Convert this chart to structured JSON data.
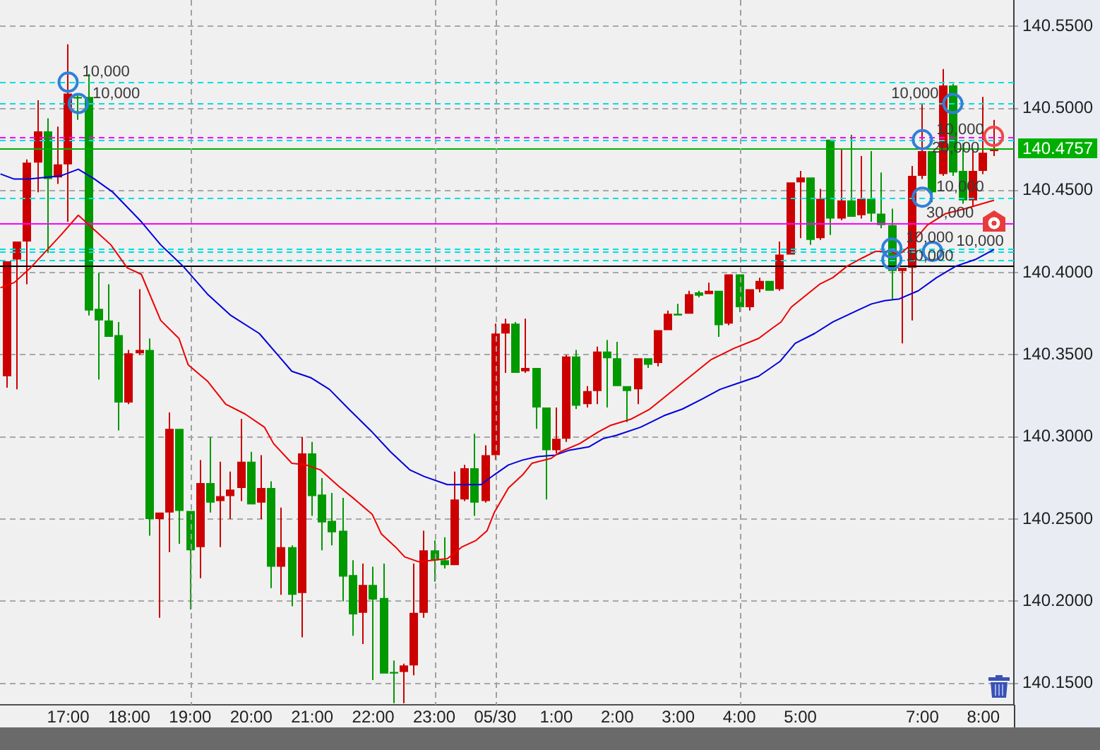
{
  "chart_data": {
    "type": "candlestick",
    "x": [
      "--05-29T16:00",
      "--05-29T16:10",
      "--05-29T16:20",
      "--05-29T16:30",
      "--05-29T16:40",
      "--05-29T16:50",
      "--05-29T17:00",
      "--05-29T17:10",
      "--05-29T17:20",
      "--05-29T17:30",
      "--05-29T17:40",
      "--05-29T17:50",
      "--05-29T18:00",
      "--05-29T18:10",
      "--05-29T18:20",
      "--05-29T18:30",
      "--05-29T18:40",
      "--05-29T18:50",
      "--05-29T19:00",
      "--05-29T19:10",
      "--05-29T19:20",
      "--05-29T19:30",
      "--05-29T19:40",
      "--05-29T19:50",
      "--05-29T20:00",
      "--05-29T20:10",
      "--05-29T20:20",
      "--05-29T20:30",
      "--05-29T20:40",
      "--05-29T20:50",
      "--05-29T21:00",
      "--05-29T21:10",
      "--05-29T21:20",
      "--05-29T21:30",
      "--05-29T21:40",
      "--05-29T21:50",
      "--05-29T22:00",
      "--05-29T22:10",
      "--05-29T22:20",
      "--05-29T22:30",
      "--05-29T22:40",
      "--05-29T22:50",
      "--05-29T23:00",
      "--05-29T23:10",
      "--05-29T23:20",
      "--05-29T23:30",
      "--05-29T23:40",
      "--05-29T23:50",
      "--05-30T00:00",
      "--05-30T00:10",
      "--05-30T00:20",
      "--05-30T00:30",
      "--05-30T00:40",
      "--05-30T00:50",
      "--05-30T01:00",
      "--05-30T01:10",
      "--05-30T01:20",
      "--05-30T01:30",
      "--05-30T01:40",
      "--05-30T01:50",
      "--05-30T02:00",
      "--05-30T02:10",
      "--05-30T02:20",
      "--05-30T02:30",
      "--05-30T02:40",
      "--05-30T02:50",
      "--05-30T03:00",
      "--05-30T03:10",
      "--05-30T03:20",
      "--05-30T03:30",
      "--05-30T03:40",
      "--05-30T03:50",
      "--05-30T04:00",
      "--05-30T04:10",
      "--05-30T04:20",
      "--05-30T04:30",
      "--05-30T04:40",
      "--05-30T04:50",
      "--05-30T05:00",
      "--05-30T05:10",
      "--05-30T05:20",
      "--05-30T05:30",
      "--05-30T05:40",
      "--05-30T05:50",
      "--05-30T06:00",
      "--05-30T06:10",
      "--05-30T06:20",
      "--05-30T06:30",
      "--05-30T06:40",
      "--05-30T06:50",
      "--05-30T07:00",
      "--05-30T07:10",
      "--05-30T07:20",
      "--05-30T07:30",
      "--05-30T07:40",
      "--05-30T07:50",
      "--05-30T08:00",
      "--05-30T08:10"
    ],
    "ohlc": [
      [
        140.337,
        140.407,
        140.33,
        140.407
      ],
      [
        140.408,
        140.419,
        140.329,
        140.419
      ],
      [
        140.419,
        140.469,
        140.393,
        140.467
      ],
      [
        140.467,
        140.505,
        140.449,
        140.486
      ],
      [
        140.486,
        140.494,
        140.412,
        140.457
      ],
      [
        140.458,
        140.489,
        140.454,
        140.466
      ],
      [
        140.466,
        140.539,
        140.431,
        140.509
      ],
      [
        140.507,
        140.509,
        140.493,
        140.506
      ],
      [
        140.507,
        140.521,
        140.374,
        140.377
      ],
      [
        140.378,
        140.4,
        140.335,
        140.371
      ],
      [
        140.371,
        140.393,
        140.361,
        140.361
      ],
      [
        140.362,
        140.37,
        140.304,
        140.321
      ],
      [
        140.321,
        140.353,
        140.32,
        140.351
      ],
      [
        140.351,
        140.39,
        140.35,
        140.353
      ],
      [
        140.353,
        140.36,
        140.24,
        140.25
      ],
      [
        140.25,
        140.254,
        140.19,
        140.254
      ],
      [
        140.254,
        140.315,
        140.23,
        140.305
      ],
      [
        140.305,
        140.305,
        140.235,
        140.255
      ],
      [
        140.255,
        140.255,
        140.195,
        140.231
      ],
      [
        140.233,
        140.286,
        140.214,
        140.272
      ],
      [
        140.272,
        140.3,
        140.254,
        140.26
      ],
      [
        140.261,
        140.285,
        140.233,
        140.264
      ],
      [
        140.264,
        140.279,
        140.25,
        140.268
      ],
      [
        140.269,
        140.311,
        140.261,
        140.285
      ],
      [
        140.285,
        140.291,
        140.259,
        140.259
      ],
      [
        140.26,
        140.289,
        140.25,
        140.269
      ],
      [
        140.269,
        140.273,
        140.208,
        140.221
      ],
      [
        140.221,
        140.257,
        140.204,
        140.233
      ],
      [
        140.233,
        140.234,
        140.197,
        140.204
      ],
      [
        140.205,
        140.3,
        140.178,
        140.29
      ],
      [
        140.29,
        140.297,
        140.252,
        140.264
      ],
      [
        140.265,
        140.275,
        140.231,
        140.248
      ],
      [
        140.249,
        140.266,
        140.234,
        140.242
      ],
      [
        140.243,
        140.263,
        140.2,
        140.215
      ],
      [
        140.216,
        140.225,
        140.179,
        140.192
      ],
      [
        140.193,
        140.223,
        140.174,
        140.21
      ],
      [
        140.21,
        140.221,
        140.152,
        140.201
      ],
      [
        140.202,
        140.223,
        140.156,
        140.156
      ],
      [
        140.157,
        140.164,
        140.138,
        140.156
      ],
      [
        140.157,
        140.162,
        140.138,
        140.161
      ],
      [
        140.161,
        140.223,
        140.155,
        140.193
      ],
      [
        140.193,
        140.243,
        140.19,
        140.231
      ],
      [
        140.231,
        140.237,
        140.212,
        140.225
      ],
      [
        140.225,
        140.239,
        140.22,
        140.222
      ],
      [
        140.222,
        140.279,
        140.222,
        140.262
      ],
      [
        140.262,
        140.283,
        140.261,
        140.281
      ],
      [
        140.281,
        140.302,
        140.252,
        140.26
      ],
      [
        140.261,
        140.295,
        140.26,
        140.289
      ],
      [
        140.289,
        140.369,
        140.286,
        140.363
      ],
      [
        140.363,
        140.372,
        140.339,
        140.369
      ],
      [
        140.369,
        140.37,
        140.339,
        140.339
      ],
      [
        140.34,
        140.372,
        140.339,
        140.342
      ],
      [
        140.342,
        140.342,
        140.305,
        140.318
      ],
      [
        140.318,
        140.318,
        140.262,
        140.292
      ],
      [
        140.292,
        140.318,
        140.29,
        140.299
      ],
      [
        140.299,
        140.35,
        140.297,
        140.349
      ],
      [
        140.349,
        140.353,
        140.317,
        140.319
      ],
      [
        140.32,
        140.331,
        140.318,
        140.328
      ],
      [
        140.328,
        140.355,
        140.32,
        140.352
      ],
      [
        140.352,
        140.359,
        140.318,
        140.348
      ],
      [
        140.348,
        140.358,
        140.331,
        140.331
      ],
      [
        140.331,
        140.331,
        140.309,
        140.328
      ],
      [
        140.329,
        140.348,
        140.32,
        140.348
      ],
      [
        140.348,
        140.348,
        140.342,
        140.344
      ],
      [
        140.345,
        140.365,
        140.343,
        140.365
      ],
      [
        140.365,
        140.377,
        140.365,
        140.375
      ],
      [
        140.375,
        140.381,
        140.374,
        140.374
      ],
      [
        140.375,
        140.389,
        140.375,
        140.387
      ],
      [
        140.388,
        140.389,
        140.385,
        140.386
      ],
      [
        140.387,
        140.394,
        140.387,
        140.389
      ],
      [
        140.389,
        140.389,
        140.361,
        140.368
      ],
      [
        140.369,
        140.399,
        140.368,
        140.399
      ],
      [
        140.399,
        140.399,
        140.376,
        140.379
      ],
      [
        140.379,
        140.39,
        140.377,
        140.39
      ],
      [
        140.39,
        140.397,
        140.388,
        140.395
      ],
      [
        140.395,
        140.395,
        140.389,
        140.389
      ],
      [
        140.39,
        140.419,
        140.389,
        140.411
      ],
      [
        140.411,
        140.455,
        140.411,
        140.455
      ],
      [
        140.455,
        140.462,
        140.421,
        140.458
      ],
      [
        140.458,
        140.458,
        140.417,
        140.42
      ],
      [
        140.421,
        140.451,
        140.42,
        140.445
      ],
      [
        140.481,
        140.481,
        140.423,
        140.433
      ],
      [
        140.433,
        140.475,
        140.432,
        140.444
      ],
      [
        140.444,
        140.484,
        140.434,
        140.434
      ],
      [
        140.435,
        140.471,
        140.433,
        140.445
      ],
      [
        140.445,
        140.474,
        140.431,
        140.436
      ],
      [
        140.436,
        140.461,
        140.427,
        140.429
      ],
      [
        140.429,
        140.439,
        140.384,
        140.401
      ],
      [
        140.401,
        140.403,
        140.357,
        140.403
      ],
      [
        140.403,
        140.465,
        140.371,
        140.459
      ],
      [
        140.459,
        140.503,
        140.457,
        140.474
      ],
      [
        140.474,
        140.474,
        140.443,
        140.449
      ],
      [
        140.46,
        140.524,
        140.459,
        140.514
      ],
      [
        140.514,
        140.515,
        140.459,
        140.461
      ],
      [
        140.462,
        140.479,
        140.442,
        140.444
      ],
      [
        140.444,
        140.475,
        140.44,
        140.462
      ],
      [
        140.462,
        140.507,
        140.46,
        140.473
      ],
      [
        140.474,
        140.493,
        140.471,
        140.4757
      ]
    ],
    "colors": [
      "#cc0000",
      "#cc0000",
      "#cc0000",
      "#cc0000",
      "#009900",
      "#cc0000",
      "#cc0000",
      "#009900",
      "#009900",
      "#009900",
      "#009900",
      "#009900",
      "#cc0000",
      "#cc0000",
      "#009900",
      "#cc0000",
      "#cc0000",
      "#009900",
      "#009900",
      "#cc0000",
      "#009900",
      "#cc0000",
      "#cc0000",
      "#cc0000",
      "#009900",
      "#cc0000",
      "#009900",
      "#cc0000",
      "#009900",
      "#cc0000",
      "#009900",
      "#009900",
      "#009900",
      "#009900",
      "#009900",
      "#cc0000",
      "#009900",
      "#009900",
      "#009900",
      "#cc0000",
      "#cc0000",
      "#cc0000",
      "#009900",
      "#009900",
      "#cc0000",
      "#cc0000",
      "#009900",
      "#cc0000",
      "#cc0000",
      "#cc0000",
      "#009900",
      "#cc0000",
      "#009900",
      "#009900",
      "#cc0000",
      "#cc0000",
      "#009900",
      "#cc0000",
      "#cc0000",
      "#009900",
      "#009900",
      "#009900",
      "#cc0000",
      "#009900",
      "#cc0000",
      "#cc0000",
      "#009900",
      "#cc0000",
      "#009900",
      "#cc0000",
      "#009900",
      "#cc0000",
      "#009900",
      "#cc0000",
      "#cc0000",
      "#009900",
      "#cc0000",
      "#cc0000",
      "#cc0000",
      "#009900",
      "#cc0000",
      "#009900",
      "#cc0000",
      "#009900",
      "#cc0000",
      "#009900",
      "#009900",
      "#009900",
      "#cc0000",
      "#cc0000",
      "#cc0000",
      "#009900",
      "#cc0000",
      "#009900",
      "#009900",
      "#cc0000",
      "#cc0000",
      "#cc0000"
    ],
    "series": [
      {
        "type": "line",
        "color": "#ee0000",
        "x": [
          "--05-29T15:54",
          "--05-29T16:07",
          "--05-29T16:23",
          "--05-29T16:44",
          "--05-29T16:53",
          "--05-29T17:10",
          "--05-29T17:26",
          "--05-29T17:42",
          "--05-29T17:58",
          "--05-29T18:12",
          "--05-29T18:31",
          "--05-29T18:49",
          "--05-29T18:58",
          "--05-29T19:17",
          "--05-29T19:35",
          "--05-29T19:54",
          "--05-29T20:13",
          "--05-29T20:22",
          "--05-29T20:40",
          "--05-29T20:54",
          "--05-29T21:08",
          "--05-29T21:26",
          "--05-29T21:40",
          "--05-29T21:59",
          "--05-29T22:08",
          "--05-29T22:22",
          "--05-29T22:31",
          "--05-29T22:45",
          "--05-29T23:13",
          "--05-29T23:27",
          "--05-29T23:41",
          "--05-29T23:52",
          "--05-29T23:59",
          "--05-30T00:13",
          "--05-30T00:27",
          "--05-30T00:36",
          "--05-30T00:55",
          "--05-30T01:04",
          "--05-30T01:23",
          "--05-30T01:41",
          "--05-30T01:53",
          "--05-30T02:14",
          "--05-30T02:32",
          "--05-30T02:46",
          "--05-30T03:04",
          "--05-30T03:18",
          "--05-30T03:32",
          "--05-30T03:55",
          "--05-30T04:19",
          "--05-30T04:32",
          "--05-30T04:41",
          "--05-30T04:51",
          "--05-30T05:05",
          "--05-30T05:19",
          "--05-30T05:32",
          "--05-30T05:46",
          "--05-30T06:01",
          "--05-30T06:14",
          "--05-30T06:28",
          "--05-30T06:37",
          "--05-30T06:47",
          "--05-30T07:05",
          "--05-30T07:23",
          "--05-30T07:42",
          "--05-30T08:10"
        ],
        "values": [
          140.391,
          140.394,
          140.403,
          140.417,
          140.423,
          140.435,
          140.426,
          140.417,
          140.403,
          140.399,
          140.371,
          140.36,
          140.344,
          140.334,
          140.32,
          140.314,
          140.306,
          140.296,
          140.284,
          140.283,
          140.28,
          140.27,
          140.263,
          140.253,
          140.241,
          140.233,
          140.227,
          140.224,
          140.226,
          140.233,
          140.237,
          140.243,
          140.254,
          140.269,
          140.277,
          140.284,
          140.287,
          140.291,
          140.296,
          140.303,
          140.307,
          140.311,
          140.317,
          140.324,
          140.333,
          140.34,
          140.347,
          140.354,
          140.36,
          140.366,
          140.37,
          140.379,
          140.386,
          140.393,
          140.397,
          140.404,
          140.409,
          140.413,
          140.413,
          140.411,
          140.416,
          140.429,
          140.436,
          140.439,
          140.444
        ]
      },
      {
        "type": "line",
        "color": "#0000dd",
        "x": [
          "--05-29T15:54",
          "--05-29T16:07",
          "--05-29T16:21",
          "--05-29T16:53",
          "--05-29T17:10",
          "--05-29T17:26",
          "--05-29T17:44",
          "--05-29T18:12",
          "--05-29T18:31",
          "--05-29T18:53",
          "--05-29T19:17",
          "--05-29T19:40",
          "--05-29T20:08",
          "--05-29T20:40",
          "--05-29T20:59",
          "--05-29T21:17",
          "--05-29T21:36",
          "--05-29T21:59",
          "--05-29T22:17",
          "--05-29T22:36",
          "--05-29T22:50",
          "--05-29T23:13",
          "--05-29T23:27",
          "--05-29T23:46",
          "--05-29T23:59",
          "--05-30T00:13",
          "--05-30T00:27",
          "--05-30T00:41",
          "--05-30T00:59",
          "--05-30T01:13",
          "--05-30T01:32",
          "--05-30T01:46",
          "--05-30T01:59",
          "--05-30T02:23",
          "--05-30T02:46",
          "--05-30T03:04",
          "--05-30T03:23",
          "--05-30T03:41",
          "--05-30T04:00",
          "--05-30T04:19",
          "--05-30T04:40",
          "--05-30T04:55",
          "--05-30T05:14",
          "--05-30T05:32",
          "--05-30T05:56",
          "--05-30T06:10",
          "--05-30T06:23",
          "--05-30T06:37",
          "--05-30T06:56",
          "--05-30T07:14",
          "--05-30T07:33",
          "--05-30T07:52",
          "--05-30T08:10"
        ],
        "values": [
          140.46,
          140.457,
          140.457,
          140.459,
          140.463,
          140.457,
          140.449,
          140.431,
          140.417,
          140.404,
          140.387,
          140.374,
          140.363,
          140.34,
          140.336,
          140.329,
          140.317,
          140.303,
          140.291,
          140.28,
          140.276,
          140.271,
          140.271,
          140.271,
          140.277,
          140.283,
          140.286,
          140.288,
          140.289,
          140.292,
          140.294,
          140.299,
          140.301,
          140.306,
          140.313,
          140.317,
          140.323,
          140.329,
          140.333,
          140.337,
          140.346,
          140.357,
          140.363,
          140.37,
          140.377,
          140.381,
          140.383,
          140.384,
          140.389,
          140.397,
          140.404,
          140.408,
          140.414
        ]
      },
      {
        "type": "scatter",
        "color": "#2f80d8",
        "marker": "circle",
        "x": [
          "--05-29T17:00",
          "--05-29T17:10",
          "--05-30T06:30",
          "--05-30T06:30",
          "--05-30T07:00",
          "--05-30T07:00",
          "--05-30T07:10",
          "--05-30T07:30"
        ],
        "values": [
          140.516,
          140.503,
          140.415,
          140.408,
          140.481,
          140.446,
          140.413,
          140.503
        ]
      },
      {
        "type": "scatter",
        "color": "#f04848",
        "marker": "circle",
        "x": [
          "--05-30T08:10"
        ],
        "values": [
          140.483
        ]
      }
    ],
    "xlim": [
      "--05-29T15:53",
      "--05-30T08:30"
    ],
    "xticks": [
      {
        "value": "--05-29T17:00",
        "label": "17:00"
      },
      {
        "value": "--05-29T18:00",
        "label": "18:00"
      },
      {
        "value": "--05-29T19:00",
        "label": "19:00"
      },
      {
        "value": "--05-29T20:00",
        "label": "20:00"
      },
      {
        "value": "--05-29T21:00",
        "label": "21:00"
      },
      {
        "value": "--05-29T22:00",
        "label": "22:00"
      },
      {
        "value": "--05-29T23:00",
        "label": "23:00"
      },
      {
        "value": "--05-30T00:00",
        "label": "05/30"
      },
      {
        "value": "--05-30T01:00",
        "label": "1:00"
      },
      {
        "value": "--05-30T02:00",
        "label": "2:00"
      },
      {
        "value": "--05-30T03:00",
        "label": "3:00"
      },
      {
        "value": "--05-30T04:00",
        "label": "4:00"
      },
      {
        "value": "--05-30T05:00",
        "label": "5:00"
      },
      {
        "value": "--05-30T07:00",
        "label": "7:00"
      },
      {
        "value": "--05-30T08:00",
        "label": "8:00"
      }
    ],
    "ylim": [
      140.137,
      140.566
    ],
    "yticks": [
      {
        "value": 140.15,
        "label": "140.1500"
      },
      {
        "value": 140.2,
        "label": "140.2000"
      },
      {
        "value": 140.25,
        "label": "140.2500"
      },
      {
        "value": 140.3,
        "label": "140.3000"
      },
      {
        "value": 140.35,
        "label": "140.3500"
      },
      {
        "value": 140.4,
        "label": "140.4000"
      },
      {
        "value": 140.45,
        "label": "140.4500"
      },
      {
        "value": 140.5,
        "label": "140.5000"
      },
      {
        "value": 140.55,
        "label": "140.5500"
      }
    ],
    "grid": "y",
    "ref_lines": [
      {
        "axis": "y",
        "value": 140.516,
        "color": "#00e0e0",
        "line_style": "dashed"
      },
      {
        "axis": "y",
        "value": 140.503,
        "color": "#00e0e0",
        "line_style": "dashed"
      },
      {
        "axis": "y",
        "value": 140.483,
        "color": "#ff00ff",
        "line_style": "dashed"
      },
      {
        "axis": "y",
        "value": 140.481,
        "color": "#00e0e0",
        "line_style": "dashed"
      },
      {
        "axis": "y",
        "value": 140.4757,
        "label": "140.4757",
        "color": "#00b000",
        "line_style": "solid"
      },
      {
        "axis": "y",
        "value": 140.446,
        "color": "#00e0e0",
        "line_style": "dashed"
      },
      {
        "axis": "y",
        "value": 140.43,
        "color": "#ff00ff",
        "line_style": "solid"
      },
      {
        "axis": "y",
        "value": 140.415,
        "color": "#00e0e0",
        "line_style": "dashed"
      },
      {
        "axis": "y",
        "value": 140.413,
        "color": "#00e0e0",
        "line_style": "dashed"
      },
      {
        "axis": "y",
        "value": 140.408,
        "color": "#00e0e0",
        "line_style": "dashed"
      },
      {
        "axis": "y",
        "value": 140.404,
        "color": "#000000",
        "line_style": "solid"
      },
      {
        "axis": "x",
        "value": "--05-29T19:00",
        "color": "#a0a0a0",
        "line_style": "dashed"
      },
      {
        "axis": "x",
        "value": "--05-29T23:00",
        "color": "#a0a0a0",
        "line_style": "dashed"
      },
      {
        "axis": "x",
        "value": "--05-30T00:00",
        "color": "#a0a0a0",
        "line_style": "dashed"
      },
      {
        "axis": "x",
        "value": "--05-30T04:00",
        "color": "#a0a0a0",
        "line_style": "dashed"
      }
    ],
    "annotations": [
      {
        "text": "10,000",
        "x": "--05-29T17:00",
        "y": 140.516
      },
      {
        "text": "10,000",
        "x": "--05-29T17:10",
        "y": 140.503
      },
      {
        "text": "10,000",
        "x": "--05-30T07:30",
        "y": 140.503
      },
      {
        "text": "10,000",
        "x": "--05-30T07:00",
        "y": 140.481
      },
      {
        "text": "20,000",
        "x": "--05-30T08:10",
        "y": 140.483
      },
      {
        "text": "10,000",
        "x": "--05-30T07:00",
        "y": 140.446
      },
      {
        "text": "30,000",
        "x": "--05-30T06:50",
        "y": 140.43
      },
      {
        "text": "10,000",
        "x": "--05-30T06:30",
        "y": 140.415
      },
      {
        "text": "10,000",
        "x": "--05-30T06:30",
        "y": 140.408
      },
      {
        "text": "10,000",
        "x": "--05-30T07:10",
        "y": 140.413
      }
    ]
  }
}
